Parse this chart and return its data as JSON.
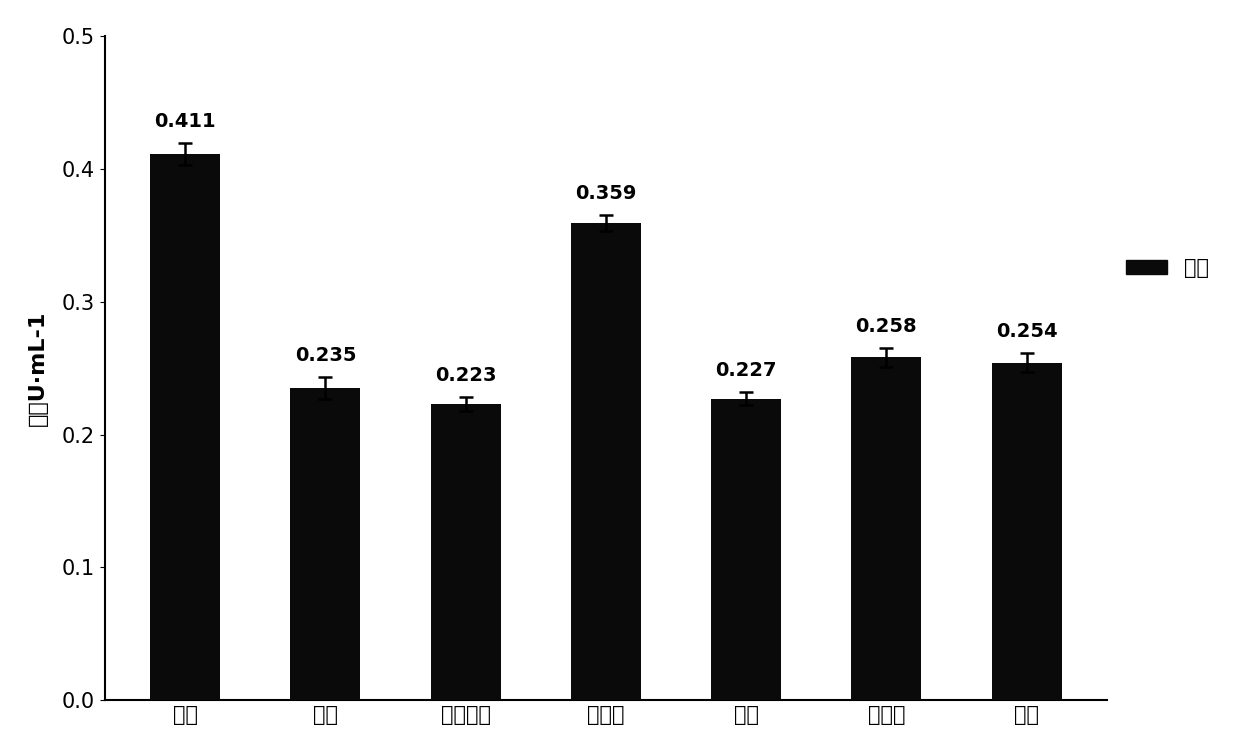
{
  "categories": [
    "肌酸",
    "果糖",
    "柠檬酸销",
    "乙酸销",
    "乳糖",
    "葡萄糖",
    "空白"
  ],
  "values": [
    0.411,
    0.235,
    0.223,
    0.359,
    0.227,
    0.258,
    0.254
  ],
  "errors": [
    0.008,
    0.008,
    0.005,
    0.006,
    0.005,
    0.007,
    0.007
  ],
  "bar_color": "#0a0a0a",
  "ylabel": "酶活U·mL-1",
  "ylim": [
    0,
    0.5
  ],
  "yticks": [
    0,
    0.1,
    0.2,
    0.3,
    0.4,
    0.5
  ],
  "legend_label": "酶活",
  "background_color": "#ffffff",
  "label_fontsize": 16,
  "tick_fontsize": 15,
  "value_fontsize": 14,
  "legend_fontsize": 15,
  "bar_width": 0.5
}
